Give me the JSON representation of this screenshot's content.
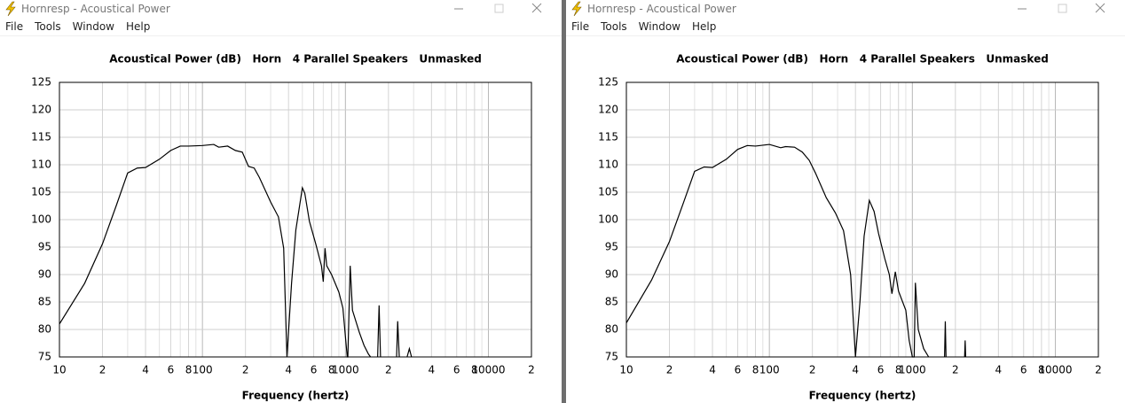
{
  "windows": [
    {
      "title": "Hornresp - Acoustical Power",
      "menu": [
        "File",
        "Tools",
        "Window",
        "Help"
      ]
    },
    {
      "title": "Hornresp - Acoustical Power",
      "menu": [
        "File",
        "Tools",
        "Window",
        "Help"
      ]
    }
  ],
  "chart_data": [
    {
      "type": "line",
      "title": "Acoustical Power (dB)   Horn   4 Parallel Speakers   Unmasked",
      "x_label": "Frequency (hertz)",
      "log_x": true,
      "grid": true,
      "xlim": [
        10,
        20000
      ],
      "ylim": [
        75,
        125
      ],
      "xticks": [
        10,
        {
          "value": 20,
          "label": "2"
        },
        {
          "value": 40,
          "label": "4"
        },
        {
          "value": 60,
          "label": "6"
        },
        {
          "value": 80,
          "label": "8"
        },
        100,
        {
          "value": 200,
          "label": "2"
        },
        {
          "value": 400,
          "label": "4"
        },
        {
          "value": 600,
          "label": "6"
        },
        {
          "value": 800,
          "label": "8"
        },
        1000,
        {
          "value": 2000,
          "label": "2"
        },
        {
          "value": 4000,
          "label": "4"
        },
        {
          "value": 6000,
          "label": "6"
        },
        {
          "value": 8000,
          "label": "8"
        },
        10000,
        {
          "value": 20000,
          "label": "2"
        }
      ],
      "xgrid_minor": [
        30,
        50,
        70,
        90,
        300,
        500,
        700,
        900,
        3000,
        5000,
        7000,
        9000
      ],
      "yticks": [
        75,
        80,
        85,
        90,
        95,
        100,
        105,
        110,
        115,
        120,
        125
      ],
      "x": [
        10,
        15,
        20,
        25,
        30,
        35,
        40,
        50,
        60,
        70,
        80,
        100,
        120,
        130,
        150,
        170,
        190,
        210,
        230,
        250,
        300,
        340,
        370,
        390,
        420,
        450,
        500,
        520,
        560,
        620,
        680,
        700,
        720,
        740,
        800,
        900,
        960,
        1000,
        1030,
        1040,
        1080,
        1120,
        1250,
        1350,
        1450,
        1500,
        1600,
        1680,
        1720,
        1760,
        1900,
        2280,
        2320,
        2380,
        2500,
        2700,
        2800,
        2900
      ],
      "series": [
        {
          "color": "#000000",
          "values": [
            81,
            88.4,
            95.6,
            102.6,
            108.5,
            109.4,
            109.5,
            111,
            112.6,
            113.4,
            113.4,
            113.5,
            113.7,
            113.2,
            113.4,
            112.6,
            112.3,
            109.7,
            109.4,
            107.7,
            103.2,
            100.5,
            94.8,
            75,
            88.4,
            98.1,
            105.8,
            104.8,
            99.7,
            95.6,
            91.6,
            88.7,
            94.8,
            91.6,
            90,
            86.8,
            83.9,
            78.7,
            75,
            75,
            91.6,
            83.5,
            79.5,
            77.1,
            75.5,
            75,
            null,
            75,
            84.4,
            75,
            null,
            75,
            81.5,
            75,
            null,
            75,
            76.5,
            75
          ]
        }
      ]
    },
    {
      "type": "line",
      "title": "Acoustical Power (dB)   Horn   4 Parallel Speakers   Unmasked",
      "x_label": "Frequency (hertz)",
      "log_x": true,
      "grid": true,
      "xlim": [
        10,
        20000
      ],
      "ylim": [
        75,
        125
      ],
      "xticks": [
        10,
        {
          "value": 20,
          "label": "2"
        },
        {
          "value": 40,
          "label": "4"
        },
        {
          "value": 60,
          "label": "6"
        },
        {
          "value": 80,
          "label": "8"
        },
        100,
        {
          "value": 200,
          "label": "2"
        },
        {
          "value": 400,
          "label": "4"
        },
        {
          "value": 600,
          "label": "6"
        },
        {
          "value": 800,
          "label": "8"
        },
        1000,
        {
          "value": 2000,
          "label": "2"
        },
        {
          "value": 4000,
          "label": "4"
        },
        {
          "value": 6000,
          "label": "6"
        },
        {
          "value": 8000,
          "label": "8"
        },
        10000,
        {
          "value": 20000,
          "label": "2"
        }
      ],
      "xgrid_minor": [
        30,
        50,
        70,
        90,
        300,
        500,
        700,
        900,
        3000,
        5000,
        7000,
        9000
      ],
      "yticks": [
        75,
        80,
        85,
        90,
        95,
        100,
        105,
        110,
        115,
        120,
        125
      ],
      "x": [
        10,
        15,
        20,
        25,
        30,
        35,
        40,
        50,
        60,
        70,
        80,
        100,
        120,
        130,
        150,
        170,
        190,
        210,
        250,
        290,
        330,
        370,
        400,
        430,
        460,
        500,
        540,
        580,
        640,
        690,
        720,
        760,
        800,
        900,
        950,
        1000,
        1030,
        1050,
        1100,
        1200,
        1300,
        1400,
        1680,
        1700,
        1720,
        1800,
        2320,
        2340,
        2360
      ],
      "series": [
        {
          "color": "#000000",
          "values": [
            81.2,
            89,
            96,
            103,
            108.8,
            109.6,
            109.5,
            111,
            112.8,
            113.5,
            113.4,
            113.7,
            113.1,
            113.3,
            113.2,
            112.3,
            110.8,
            108.5,
            104,
            101.2,
            98,
            90,
            75,
            85,
            97,
            103.5,
            101.5,
            97.5,
            93,
            90,
            86.5,
            90.5,
            87,
            83.5,
            78,
            75,
            75,
            88.5,
            80,
            76.5,
            75,
            null,
            75,
            81.5,
            75,
            null,
            75,
            78,
            75
          ]
        }
      ]
    }
  ]
}
